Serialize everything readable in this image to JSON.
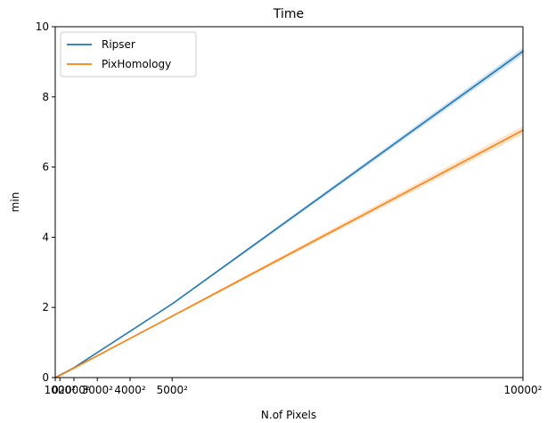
{
  "chart_data": {
    "type": "line",
    "title": "Time",
    "xlabel": "N.of Pixels",
    "ylabel": "min",
    "x": [
      0,
      1000000,
      4000000,
      25000000,
      100000000
    ],
    "xlim": [
      0,
      100000000
    ],
    "ylim": [
      0,
      10
    ],
    "x_ticks": [
      {
        "value": 0,
        "label": "0"
      },
      {
        "value": 1000000,
        "label": "1000²"
      },
      {
        "value": 4000000,
        "label": "2000²"
      },
      {
        "value": 9000000,
        "label": "3000²"
      },
      {
        "value": 16000000,
        "label": "4000²"
      },
      {
        "value": 25000000,
        "label": "5000²"
      },
      {
        "value": 100000000,
        "label": "10000²"
      }
    ],
    "y_ticks": [
      {
        "value": 0,
        "label": "0"
      },
      {
        "value": 2,
        "label": "2"
      },
      {
        "value": 4,
        "label": "4"
      },
      {
        "value": 6,
        "label": "6"
      },
      {
        "value": 8,
        "label": "8"
      },
      {
        "value": 10,
        "label": "10"
      }
    ],
    "series": [
      {
        "name": "Ripser",
        "color": "#1f77b4",
        "values": [
          0,
          0.07,
          0.28,
          2.1,
          9.3
        ],
        "band": 0.1
      },
      {
        "name": "PixHomology",
        "color": "#ff7f0e",
        "values": [
          0,
          0.06,
          0.27,
          1.75,
          7.05
        ],
        "band": 0.15
      }
    ],
    "legend_position": "top-left",
    "grid": false
  }
}
